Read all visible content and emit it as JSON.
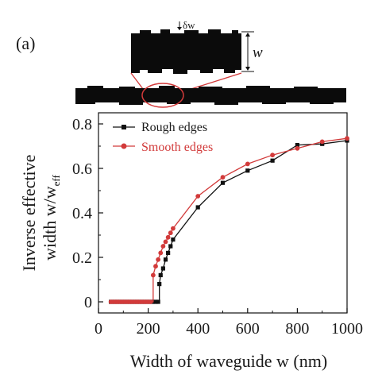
{
  "panel_label": "(a)",
  "inset": {
    "delta_label": "δw",
    "width_label": "w"
  },
  "chart_data": {
    "type": "line",
    "title": "",
    "xlabel": "Width of waveguide w (nm)",
    "ylabel_line1": "Inverse effective",
    "ylabel_line2": "width w/w",
    "ylabel_sub": "eff",
    "xlim": [
      0,
      1000
    ],
    "ylim": [
      -0.05,
      0.85
    ],
    "xticks": [
      0,
      200,
      400,
      600,
      800,
      1000
    ],
    "yticks": [
      0,
      0.2,
      0.4,
      0.6,
      0.8
    ],
    "legend_position": "top-left",
    "series": [
      {
        "name": "Rough edges",
        "color": "#111111",
        "marker": "square",
        "points": [
          [
            50,
            0
          ],
          [
            60,
            0
          ],
          [
            70,
            0
          ],
          [
            80,
            0
          ],
          [
            90,
            0
          ],
          [
            100,
            0
          ],
          [
            110,
            0
          ],
          [
            120,
            0
          ],
          [
            130,
            0
          ],
          [
            140,
            0
          ],
          [
            150,
            0
          ],
          [
            160,
            0
          ],
          [
            170,
            0
          ],
          [
            180,
            0
          ],
          [
            190,
            0
          ],
          [
            200,
            0
          ],
          [
            210,
            0
          ],
          [
            220,
            0
          ],
          [
            230,
            0
          ],
          [
            240,
            0
          ],
          [
            245,
            0.08
          ],
          [
            250,
            0.12
          ],
          [
            260,
            0.15
          ],
          [
            270,
            0.19
          ],
          [
            280,
            0.22
          ],
          [
            290,
            0.25
          ],
          [
            300,
            0.28
          ],
          [
            400,
            0.425
          ],
          [
            500,
            0.535
          ],
          [
            600,
            0.59
          ],
          [
            700,
            0.635
          ],
          [
            800,
            0.705
          ],
          [
            900,
            0.71
          ],
          [
            1000,
            0.725
          ]
        ]
      },
      {
        "name": "Smooth edges",
        "color": "#d23a3a",
        "marker": "circle",
        "points": [
          [
            50,
            0
          ],
          [
            60,
            0
          ],
          [
            70,
            0
          ],
          [
            80,
            0
          ],
          [
            90,
            0
          ],
          [
            100,
            0
          ],
          [
            110,
            0
          ],
          [
            120,
            0
          ],
          [
            130,
            0
          ],
          [
            140,
            0
          ],
          [
            150,
            0
          ],
          [
            160,
            0
          ],
          [
            170,
            0
          ],
          [
            180,
            0
          ],
          [
            190,
            0
          ],
          [
            200,
            0
          ],
          [
            210,
            0
          ],
          [
            220,
            0.12
          ],
          [
            230,
            0.16
          ],
          [
            240,
            0.19
          ],
          [
            250,
            0.22
          ],
          [
            260,
            0.25
          ],
          [
            270,
            0.27
          ],
          [
            280,
            0.29
          ],
          [
            290,
            0.31
          ],
          [
            300,
            0.33
          ],
          [
            400,
            0.475
          ],
          [
            500,
            0.56
          ],
          [
            600,
            0.62
          ],
          [
            700,
            0.66
          ],
          [
            800,
            0.69
          ],
          [
            900,
            0.72
          ],
          [
            1000,
            0.735
          ]
        ]
      }
    ]
  }
}
